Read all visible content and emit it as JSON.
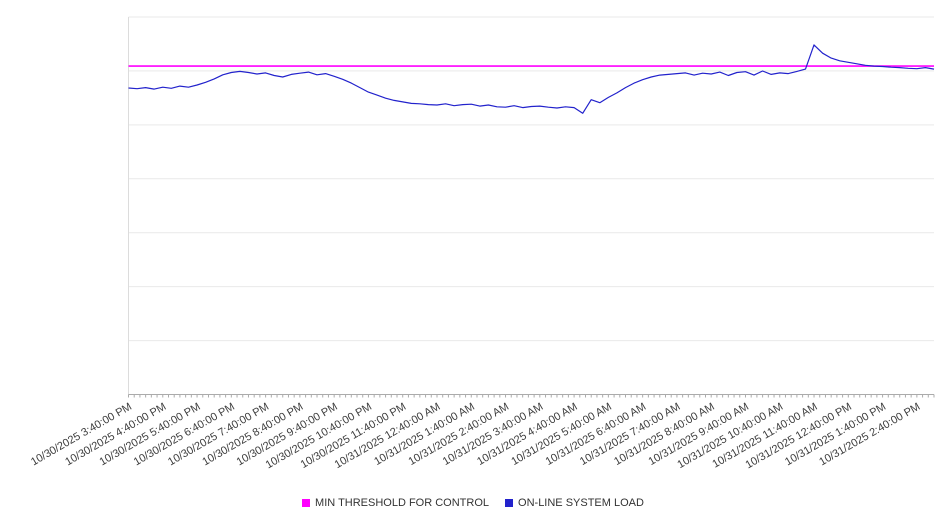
{
  "chart_data": {
    "type": "line",
    "title": "",
    "xlabel": "",
    "ylabel": "",
    "ylim": [
      0,
      100
    ],
    "grid": true,
    "grid_divisions": 7,
    "legend_position": "bottom",
    "label_every_n_points": 4,
    "x_labels": [
      "10/30/2025 3:40:00 PM",
      "10/30/2025 4:40:00 PM",
      "10/30/2025 5:40:00 PM",
      "10/30/2025 6:40:00 PM",
      "10/30/2025 7:40:00 PM",
      "10/30/2025 8:40:00 PM",
      "10/30/2025 9:40:00 PM",
      "10/30/2025 10:40:00 PM",
      "10/30/2025 11:40:00 PM",
      "10/31/2025 12:40:00 AM",
      "10/31/2025 1:40:00 AM",
      "10/31/2025 2:40:00 AM",
      "10/31/2025 3:40:00 AM",
      "10/31/2025 4:40:00 AM",
      "10/31/2025 5:40:00 AM",
      "10/31/2025 6:40:00 AM",
      "10/31/2025 7:40:00 AM",
      "10/31/2025 8:40:00 AM",
      "10/31/2025 9:40:00 AM",
      "10/31/2025 10:40:00 AM",
      "10/31/2025 11:40:00 AM",
      "10/31/2025 12:40:00 PM",
      "10/31/2025 1:40:00 PM",
      "10/31/2025 2:40:00 PM"
    ],
    "series": [
      {
        "name": "MIN THRESHOLD FOR CONTROL",
        "type": "constant-threshold",
        "color": "#ff00ff",
        "value": 87.0
      },
      {
        "name": "ON-LINE SYSTEM LOAD",
        "type": "line",
        "color": "#2222cc",
        "values": [
          81.2,
          81.0,
          81.3,
          80.9,
          81.4,
          81.1,
          81.7,
          81.4,
          82.0,
          82.7,
          83.6,
          84.7,
          85.3,
          85.6,
          85.3,
          84.9,
          85.2,
          84.5,
          84.1,
          84.8,
          85.1,
          85.4,
          84.7,
          85.0,
          84.3,
          83.5,
          82.5,
          81.3,
          80.1,
          79.3,
          78.5,
          77.9,
          77.5,
          77.1,
          77.0,
          76.8,
          76.7,
          77.0,
          76.5,
          76.8,
          76.9,
          76.4,
          76.7,
          76.2,
          76.1,
          76.5,
          76.0,
          76.3,
          76.4,
          76.1,
          75.9,
          76.2,
          76.0,
          74.5,
          78.1,
          77.3,
          78.7,
          79.9,
          81.3,
          82.5,
          83.4,
          84.1,
          84.6,
          84.8,
          85.0,
          85.2,
          84.6,
          85.1,
          84.9,
          85.4,
          84.5,
          85.3,
          85.5,
          84.6,
          85.7,
          84.8,
          85.2,
          85.0,
          85.6,
          86.2,
          92.6,
          90.4,
          89.1,
          88.4,
          88.0,
          87.6,
          87.2,
          87.0,
          86.9,
          86.7,
          86.6,
          86.4,
          86.3,
          86.6,
          86.2
        ]
      }
    ],
    "colors": {
      "gridline": "#e9e9e9",
      "axis": "#ababab",
      "plot_border": "#dcdcdc"
    }
  },
  "legend": {
    "items": [
      {
        "label": "MIN THRESHOLD FOR CONTROL",
        "color": "#ff00ff"
      },
      {
        "label": "ON-LINE SYSTEM LOAD",
        "color": "#2222cc"
      }
    ]
  }
}
